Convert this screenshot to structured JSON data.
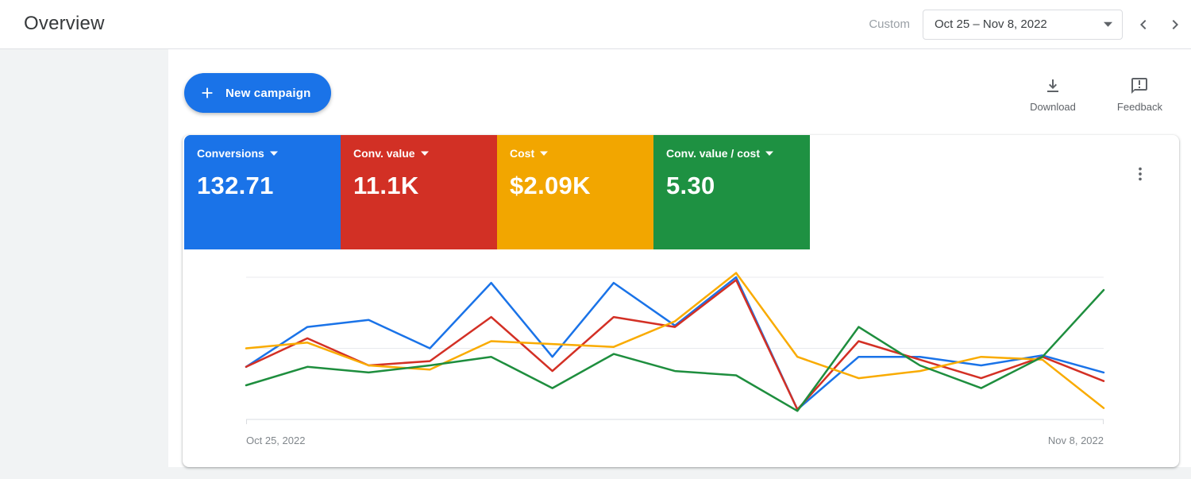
{
  "header": {
    "title": "Overview",
    "date_mode_label": "Custom",
    "date_range_value": "Oct 25 – Nov 8, 2022"
  },
  "actions": {
    "new_campaign": "New campaign",
    "download": "Download",
    "feedback": "Feedback"
  },
  "metrics": [
    {
      "label": "Conversions",
      "value": "132.71",
      "color": "#1a73e8"
    },
    {
      "label": "Conv. value",
      "value": "11.1K",
      "color": "#d23025"
    },
    {
      "label": "Cost",
      "value": "$2.09K",
      "color": "#f2a600"
    },
    {
      "label": "Conv. value / cost",
      "value": "5.30",
      "color": "#1e9142"
    }
  ],
  "chart_axis": {
    "start_label": "Oct 25, 2022",
    "end_label": "Nov 8, 2022"
  },
  "chart_data": {
    "type": "line",
    "x": [
      "Oct 25",
      "Oct 26",
      "Oct 27",
      "Oct 28",
      "Oct 29",
      "Oct 30",
      "Oct 31",
      "Nov 1",
      "Nov 2",
      "Nov 3",
      "Nov 4",
      "Nov 5",
      "Nov 6",
      "Nov 7",
      "Nov 8"
    ],
    "series": [
      {
        "name": "Conversions",
        "color": "#1a73e8",
        "values": [
          37,
          65,
          70,
          50,
          96,
          44,
          96,
          66,
          100,
          7,
          44,
          44,
          38,
          45,
          33
        ]
      },
      {
        "name": "Conv. value",
        "color": "#d33025",
        "values": [
          37,
          57,
          38,
          41,
          72,
          34,
          72,
          65,
          98,
          7,
          55,
          42,
          29,
          44,
          27
        ]
      },
      {
        "name": "Cost",
        "color": "#f9ab00",
        "values": [
          50,
          54,
          38,
          35,
          55,
          53,
          51,
          69,
          103,
          44,
          29,
          34,
          44,
          42,
          8
        ]
      },
      {
        "name": "Conv. value / cost",
        "color": "#1e8e3e",
        "values": [
          24,
          37,
          33,
          38,
          44,
          22,
          46,
          34,
          31,
          6,
          65,
          38,
          22,
          44,
          91
        ]
      }
    ],
    "ylim": [
      0,
      105
    ],
    "gridlines": [
      0,
      50,
      100
    ],
    "grid": "horizontal only",
    "legend": "none",
    "x_axis_labels": [
      "Oct 25, 2022",
      "Nov 8, 2022"
    ]
  }
}
